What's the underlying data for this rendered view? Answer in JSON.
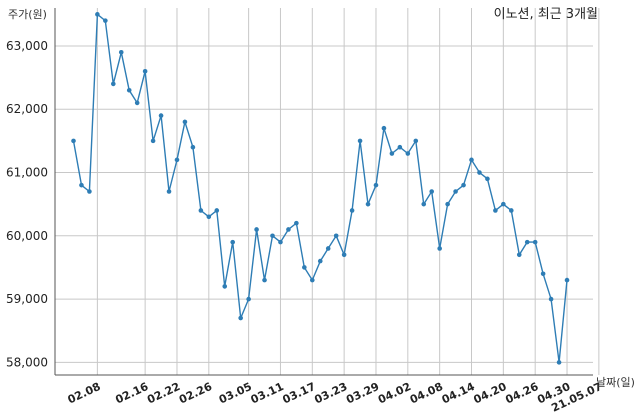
{
  "chart_data": {
    "type": "line",
    "title": "이노션, 최근 3개월",
    "xlabel": "날짜(일)",
    "ylabel": "주가(원)",
    "ylim": [
      57800,
      63600
    ],
    "yticks": [
      58000,
      59000,
      60000,
      61000,
      62000,
      63000
    ],
    "ytick_labels": [
      "58,000",
      "59,000",
      "60,000",
      "61,000",
      "62,000",
      "63,000"
    ],
    "grid": true,
    "color": "#2e7db5",
    "x_tick_labels": [
      "02.08",
      "02.16",
      "02.22",
      "02.26",
      "03.05",
      "03.11",
      "03.17",
      "03.23",
      "03.29",
      "04.02",
      "04.08",
      "04.14",
      "04.20",
      "04.26",
      "04.30",
      "21.05.07"
    ],
    "x_tick_index": [
      3,
      9,
      13,
      17,
      22,
      26,
      30,
      34,
      38,
      42,
      46,
      50,
      54,
      58,
      62,
      66
    ],
    "series": [
      {
        "values": [
          61500,
          60800,
          60700,
          63500,
          63400,
          62400,
          62900,
          62300,
          62100,
          62600,
          61500,
          61900,
          60700,
          61200,
          61800,
          61400,
          60400,
          60300,
          60400,
          59200,
          59900,
          58700,
          59000,
          60100,
          59300,
          60000,
          59900,
          60100,
          60200,
          59500,
          59300,
          59600,
          59800,
          60000,
          59700,
          60400,
          61500,
          60500,
          60800,
          61700,
          61300,
          61400,
          61300,
          61500,
          60500,
          60700,
          59800,
          60500,
          60700,
          60800,
          61200,
          61000,
          60900,
          60400,
          60500,
          60400,
          59700,
          59900,
          59900,
          59400,
          59000,
          58000,
          59300
        ]
      }
    ]
  }
}
